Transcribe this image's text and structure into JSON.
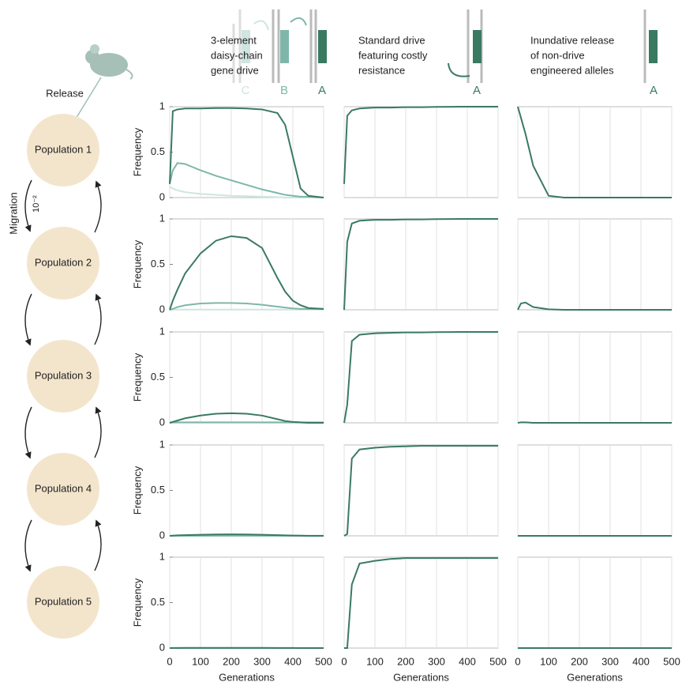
{
  "release_label": "Release",
  "migration_label": "Migration",
  "migration_rate": "10⁻²",
  "populations": [
    "Population 1",
    "Population 2",
    "Population 3",
    "Population 4",
    "Population 5"
  ],
  "columns": [
    {
      "title_lines": [
        "3-element",
        "daisy-chain",
        "gene drive"
      ],
      "alleles": [
        "C",
        "B",
        "A"
      ]
    },
    {
      "title_lines": [
        "Standard drive",
        "featuring costly",
        "resistance"
      ],
      "alleles": [
        "A"
      ]
    },
    {
      "title_lines": [
        "Inundative release",
        "of non-drive",
        "engineered alleles"
      ],
      "alleles": [
        "A"
      ]
    }
  ],
  "chart_data": [
    {
      "type": "line",
      "ylabel": "Frequency",
      "x": [
        0,
        10,
        25,
        50,
        100,
        150,
        200,
        250,
        300,
        350,
        375,
        400,
        425,
        450,
        500
      ],
      "xlim": [
        0,
        500
      ],
      "ylim": [
        0,
        1
      ],
      "xticks": [
        0,
        100,
        200,
        300,
        400,
        500
      ],
      "yticks": [
        0,
        0.5,
        1
      ],
      "grid": true,
      "series": [
        {
          "color": "#cfe5df",
          "values": [
            0.12,
            0.1,
            0.08,
            0.06,
            0.04,
            0.03,
            0.02,
            0.015,
            0.01,
            0.005,
            0,
            0,
            0,
            0,
            0
          ]
        },
        {
          "color": "#7fb6aa",
          "values": [
            0.15,
            0.3,
            0.38,
            0.37,
            0.3,
            0.24,
            0.19,
            0.14,
            0.09,
            0.05,
            0.03,
            0.02,
            0.01,
            0.01,
            0
          ]
        },
        {
          "color": "#3a7a62",
          "values": [
            0.15,
            0.95,
            0.97,
            0.98,
            0.98,
            0.985,
            0.985,
            0.98,
            0.97,
            0.93,
            0.8,
            0.45,
            0.1,
            0.02,
            0
          ]
        }
      ]
    },
    {
      "type": "line",
      "x": [
        0,
        10,
        25,
        50,
        100,
        150,
        200,
        250,
        300,
        350,
        375,
        400,
        425,
        450,
        500
      ],
      "xlim": [
        0,
        500
      ],
      "ylim": [
        0,
        1
      ],
      "xticks": [
        0,
        100,
        200,
        300,
        400,
        500
      ],
      "grid": true,
      "series": [
        {
          "color": "#3a7a62",
          "values": [
            0.15,
            0.9,
            0.96,
            0.98,
            0.99,
            0.99,
            0.995,
            0.995,
            0.998,
            0.999,
            1,
            1,
            1,
            1,
            1
          ]
        }
      ]
    },
    {
      "type": "line",
      "x": [
        0,
        10,
        25,
        50,
        100,
        150,
        200,
        250,
        300,
        350,
        375,
        400,
        425,
        450,
        500
      ],
      "xlim": [
        0,
        500
      ],
      "ylim": [
        0,
        1
      ],
      "xticks": [
        0,
        100,
        200,
        300,
        400,
        500
      ],
      "grid": true,
      "series": [
        {
          "color": "#3a7a62",
          "values": [
            1,
            0.88,
            0.7,
            0.35,
            0.02,
            0,
            0,
            0,
            0,
            0,
            0,
            0,
            0,
            0,
            0
          ]
        }
      ]
    },
    {
      "type": "line",
      "ylabel": "Frequency",
      "x": [
        0,
        10,
        25,
        50,
        100,
        150,
        200,
        250,
        300,
        350,
        375,
        400,
        425,
        450,
        500
      ],
      "xlim": [
        0,
        500
      ],
      "ylim": [
        0,
        1
      ],
      "xticks": [
        0,
        100,
        200,
        300,
        400,
        500
      ],
      "yticks": [
        0,
        0.5,
        1
      ],
      "grid": true,
      "series": [
        {
          "color": "#cfe5df",
          "values": [
            0,
            0.002,
            0.002,
            0.002,
            0.002,
            0.002,
            0.002,
            0.002,
            0.002,
            0.002,
            0.002,
            0.002,
            0.002,
            0.002,
            0.002
          ]
        },
        {
          "color": "#7fb6aa",
          "values": [
            0,
            0.01,
            0.03,
            0.05,
            0.07,
            0.075,
            0.075,
            0.07,
            0.055,
            0.035,
            0.025,
            0.015,
            0.01,
            0.01,
            0.01
          ]
        },
        {
          "color": "#3a7a62",
          "values": [
            0,
            0.1,
            0.22,
            0.4,
            0.62,
            0.76,
            0.81,
            0.79,
            0.68,
            0.35,
            0.2,
            0.1,
            0.05,
            0.02,
            0.01
          ]
        }
      ]
    },
    {
      "type": "line",
      "x": [
        0,
        10,
        25,
        50,
        100,
        150,
        200,
        250,
        300,
        350,
        375,
        400,
        425,
        450,
        500
      ],
      "xlim": [
        0,
        500
      ],
      "ylim": [
        0,
        1
      ],
      "xticks": [
        0,
        100,
        200,
        300,
        400,
        500
      ],
      "grid": true,
      "series": [
        {
          "color": "#3a7a62",
          "values": [
            0,
            0.75,
            0.95,
            0.98,
            0.99,
            0.99,
            0.995,
            0.995,
            0.998,
            0.999,
            1,
            1,
            1,
            1,
            1
          ]
        }
      ]
    },
    {
      "type": "line",
      "x": [
        0,
        10,
        25,
        50,
        100,
        150,
        200,
        250,
        300,
        350,
        375,
        400,
        425,
        450,
        500
      ],
      "xlim": [
        0,
        500
      ],
      "ylim": [
        0,
        1
      ],
      "xticks": [
        0,
        100,
        200,
        300,
        400,
        500
      ],
      "grid": true,
      "series": [
        {
          "color": "#3a7a62",
          "values": [
            0,
            0.07,
            0.08,
            0.03,
            0.005,
            0,
            0,
            0,
            0,
            0,
            0,
            0,
            0,
            0,
            0
          ]
        }
      ]
    },
    {
      "type": "line",
      "ylabel": "Frequency",
      "x": [
        0,
        10,
        25,
        50,
        100,
        150,
        200,
        250,
        300,
        350,
        375,
        400,
        425,
        450,
        500
      ],
      "xlim": [
        0,
        500
      ],
      "ylim": [
        0,
        1
      ],
      "xticks": [
        0,
        100,
        200,
        300,
        400,
        500
      ],
      "yticks": [
        0,
        0.5,
        1
      ],
      "grid": true,
      "series": [
        {
          "color": "#cfe5df",
          "values": [
            0,
            0,
            0,
            0,
            0,
            0,
            0,
            0,
            0,
            0,
            0,
            0,
            0,
            0,
            0
          ]
        },
        {
          "color": "#7fb6aa",
          "values": [
            0,
            0.005,
            0.005,
            0.005,
            0.005,
            0.005,
            0.005,
            0.005,
            0.005,
            0.005,
            0.005,
            0.005,
            0.005,
            0.005,
            0.005
          ]
        },
        {
          "color": "#3a7a62",
          "values": [
            0,
            0.01,
            0.025,
            0.05,
            0.08,
            0.1,
            0.105,
            0.1,
            0.08,
            0.04,
            0.02,
            0.01,
            0.005,
            0,
            0
          ]
        }
      ]
    },
    {
      "type": "line",
      "x": [
        0,
        10,
        25,
        50,
        100,
        150,
        200,
        250,
        300,
        350,
        375,
        400,
        425,
        450,
        500
      ],
      "xlim": [
        0,
        500
      ],
      "ylim": [
        0,
        1
      ],
      "xticks": [
        0,
        100,
        200,
        300,
        400,
        500
      ],
      "grid": true,
      "series": [
        {
          "color": "#3a7a62",
          "values": [
            0,
            0.2,
            0.9,
            0.97,
            0.985,
            0.99,
            0.995,
            0.995,
            0.998,
            0.999,
            1,
            1,
            1,
            1,
            1
          ]
        }
      ]
    },
    {
      "type": "line",
      "x": [
        0,
        10,
        25,
        50,
        100,
        150,
        200,
        250,
        300,
        350,
        375,
        400,
        425,
        450,
        500
      ],
      "xlim": [
        0,
        500
      ],
      "ylim": [
        0,
        1
      ],
      "xticks": [
        0,
        100,
        200,
        300,
        400,
        500
      ],
      "grid": true,
      "series": [
        {
          "color": "#3a7a62",
          "values": [
            0,
            0.005,
            0.005,
            0,
            0,
            0,
            0,
            0,
            0,
            0,
            0,
            0,
            0,
            0,
            0
          ]
        }
      ]
    },
    {
      "type": "line",
      "ylabel": "Frequency",
      "x": [
        0,
        10,
        25,
        50,
        100,
        150,
        200,
        250,
        300,
        350,
        375,
        400,
        425,
        450,
        500
      ],
      "xlim": [
        0,
        500
      ],
      "ylim": [
        0,
        1
      ],
      "xticks": [
        0,
        100,
        200,
        300,
        400,
        500
      ],
      "yticks": [
        0,
        0.5,
        1
      ],
      "grid": true,
      "series": [
        {
          "color": "#cfe5df",
          "values": [
            0,
            0,
            0,
            0,
            0,
            0,
            0,
            0,
            0,
            0,
            0,
            0,
            0,
            0,
            0
          ]
        },
        {
          "color": "#7fb6aa",
          "values": [
            0,
            0.001,
            0.001,
            0.001,
            0.001,
            0.001,
            0.001,
            0.001,
            0.001,
            0.001,
            0.001,
            0.001,
            0.001,
            0.001,
            0.001
          ]
        },
        {
          "color": "#3a7a62",
          "values": [
            0,
            0.002,
            0.005,
            0.008,
            0.012,
            0.015,
            0.016,
            0.015,
            0.012,
            0.008,
            0.005,
            0.003,
            0.002,
            0,
            0
          ]
        }
      ]
    },
    {
      "type": "line",
      "x": [
        0,
        10,
        25,
        50,
        100,
        150,
        200,
        250,
        300,
        350,
        375,
        400,
        425,
        450,
        500
      ],
      "xlim": [
        0,
        500
      ],
      "ylim": [
        0,
        1
      ],
      "xticks": [
        0,
        100,
        200,
        300,
        400,
        500
      ],
      "grid": true,
      "series": [
        {
          "color": "#3a7a62",
          "values": [
            0,
            0.02,
            0.85,
            0.95,
            0.97,
            0.98,
            0.985,
            0.99,
            0.99,
            0.99,
            0.99,
            0.99,
            0.99,
            0.99,
            0.99
          ]
        }
      ]
    },
    {
      "type": "line",
      "x": [
        0,
        10,
        25,
        50,
        100,
        150,
        200,
        250,
        300,
        350,
        375,
        400,
        425,
        450,
        500
      ],
      "xlim": [
        0,
        500
      ],
      "ylim": [
        0,
        1
      ],
      "xticks": [
        0,
        100,
        200,
        300,
        400,
        500
      ],
      "grid": true,
      "series": [
        {
          "color": "#3a7a62",
          "values": [
            0,
            0,
            0,
            0,
            0,
            0,
            0,
            0,
            0,
            0,
            0,
            0,
            0,
            0,
            0
          ]
        }
      ]
    },
    {
      "type": "line",
      "ylabel": "Frequency",
      "xlabel": "Generations",
      "x": [
        0,
        10,
        25,
        50,
        100,
        150,
        200,
        250,
        300,
        350,
        375,
        400,
        425,
        450,
        500
      ],
      "xlim": [
        0,
        500
      ],
      "ylim": [
        0,
        1
      ],
      "xticks": [
        0,
        100,
        200,
        300,
        400,
        500
      ],
      "yticks": [
        0,
        0.5,
        1
      ],
      "grid": true,
      "series": [
        {
          "color": "#cfe5df",
          "values": [
            0,
            0,
            0,
            0,
            0,
            0,
            0,
            0,
            0,
            0,
            0,
            0,
            0,
            0,
            0
          ]
        },
        {
          "color": "#7fb6aa",
          "values": [
            0,
            0,
            0,
            0,
            0,
            0,
            0,
            0,
            0,
            0,
            0,
            0,
            0,
            0,
            0
          ]
        },
        {
          "color": "#3a7a62",
          "values": [
            0,
            0.001,
            0.001,
            0.002,
            0.002,
            0.002,
            0.002,
            0.002,
            0.002,
            0.001,
            0.001,
            0.001,
            0,
            0,
            0
          ]
        }
      ]
    },
    {
      "type": "line",
      "xlabel": "Generations",
      "x": [
        0,
        10,
        25,
        50,
        100,
        150,
        200,
        250,
        300,
        350,
        375,
        400,
        425,
        450,
        500
      ],
      "xlim": [
        0,
        500
      ],
      "ylim": [
        0,
        1
      ],
      "xticks": [
        0,
        100,
        200,
        300,
        400,
        500
      ],
      "grid": true,
      "series": [
        {
          "color": "#3a7a62",
          "values": [
            0,
            0,
            0.7,
            0.93,
            0.96,
            0.98,
            0.99,
            0.99,
            0.99,
            0.99,
            0.99,
            0.99,
            0.99,
            0.99,
            0.99
          ]
        }
      ]
    },
    {
      "type": "line",
      "xlabel": "Generations",
      "x": [
        0,
        10,
        25,
        50,
        100,
        150,
        200,
        250,
        300,
        350,
        375,
        400,
        425,
        450,
        500
      ],
      "xlim": [
        0,
        500
      ],
      "ylim": [
        0,
        1
      ],
      "xticks": [
        0,
        100,
        200,
        300,
        400,
        500
      ],
      "grid": true,
      "series": [
        {
          "color": "#3a7a62",
          "values": [
            0,
            0,
            0,
            0,
            0,
            0,
            0,
            0,
            0,
            0,
            0,
            0,
            0,
            0,
            0
          ]
        }
      ]
    }
  ]
}
